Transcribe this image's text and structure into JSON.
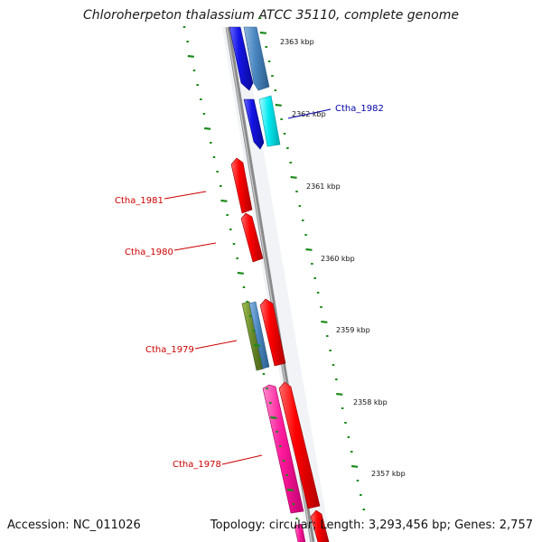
{
  "title": "Chloroherpeton thalassium ATCC 35110, complete genome",
  "accession": "Accession: NC_011026",
  "summary": "Topology: circular; Length: 3,293,456 bp; Genes: 2,757",
  "position_ticks": [
    "2363 kbp",
    "2362 kbp",
    "2361 kbp",
    "2360 kbp",
    "2359 kbp",
    "2358 kbp",
    "2357 kbp"
  ],
  "gene_labels": [
    {
      "text": "Ctha_1982",
      "color": "#0000aa"
    },
    {
      "text": "Ctha_1981",
      "color": "#cc0000"
    },
    {
      "text": "Ctha_1980",
      "color": "#cc0000"
    },
    {
      "text": "Ctha_1979",
      "color": "#cc0000"
    },
    {
      "text": "Ctha_1978",
      "color": "#cc0000"
    }
  ],
  "colors": {
    "red_gene": "#ff0000",
    "blue_gene": "#1414e6",
    "steelblue_gene": "#4a86c0",
    "cyan_gene": "#00e8f0",
    "olive_gene": "#6b8a2a",
    "pink_gene": "#ff1a9c",
    "tick": "#1a8a1a",
    "backbone": "#8a8a8a"
  }
}
